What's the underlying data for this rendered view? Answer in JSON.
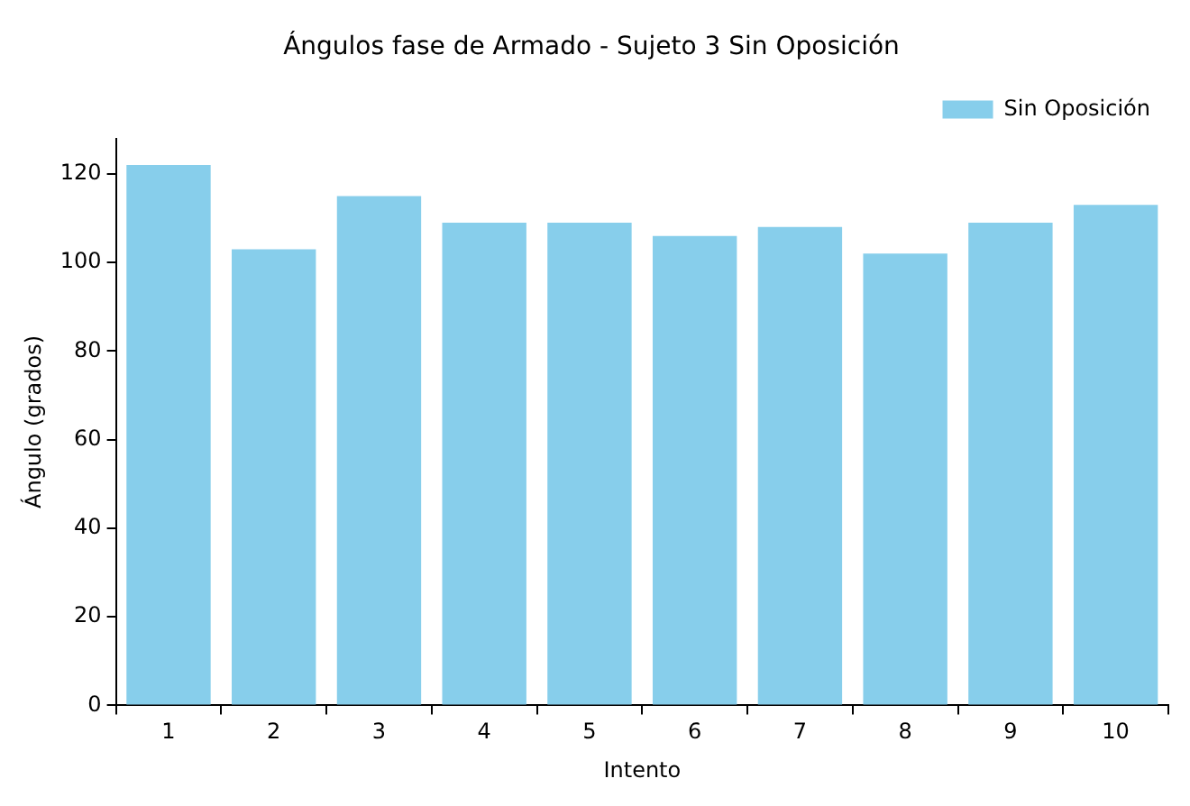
{
  "chart_data": {
    "type": "bar",
    "title": "Ángulos fase de Armado - Sujeto 3 Sin Oposición",
    "xlabel": "Intento",
    "ylabel": "Ángulo (grados)",
    "categories": [
      "1",
      "2",
      "3",
      "4",
      "5",
      "6",
      "7",
      "8",
      "9",
      "10"
    ],
    "series": [
      {
        "name": "Sin Oposición",
        "color": "#87ceeb",
        "values": [
          122,
          103,
          115,
          109,
          109,
          106,
          108,
          102,
          109,
          113
        ]
      }
    ],
    "ylim": [
      0,
      128
    ],
    "yticks": [
      0,
      20,
      40,
      60,
      80,
      100,
      120
    ],
    "grid": false,
    "legend": "top right"
  }
}
